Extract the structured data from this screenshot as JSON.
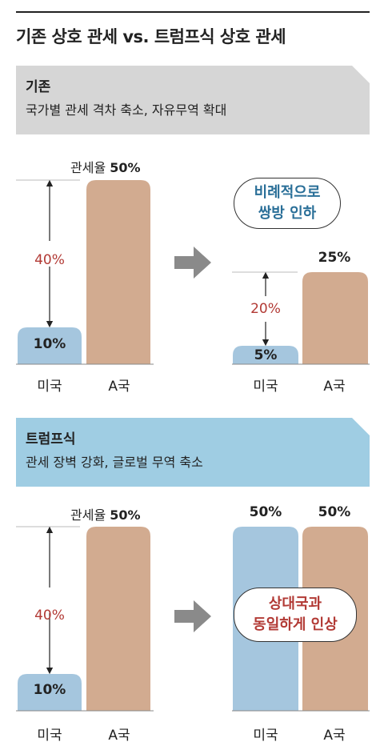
{
  "page": {
    "title": "기존 상호 관세 vs. 트럼프식 상호 관세"
  },
  "colors": {
    "us_bar": "#a5c6de",
    "a_bar": "#d2ab90",
    "gap_text": "#b23a35",
    "pill_text_blue": "#2a6f98",
    "pill_text_red": "#b23a35",
    "banner_existing": "#d6d6d6",
    "banner_trump": "#9fcde3",
    "arrow": "#8a8a8a"
  },
  "sections": {
    "existing": {
      "title": "기존",
      "subtitle": "국가별 관세 격차 축소, 자유무역 확대",
      "callout_line1": "비례적으로",
      "callout_line2": "쌍방 인하"
    },
    "trump": {
      "title": "트럼프식",
      "subtitle": "관세 장벽 강화, 글로벌 무역 축소",
      "callout_line1": "상대국과",
      "callout_line2": "동일하게 인상"
    }
  },
  "chart_data": [
    {
      "type": "bar",
      "section": "기존",
      "stage": "before",
      "categories": [
        "미국",
        "A국"
      ],
      "values": [
        10,
        50
      ],
      "value_labels": [
        "10%",
        "50%"
      ],
      "value_label_prefix": "관세율",
      "gap_label": "40%"
    },
    {
      "type": "bar",
      "section": "기존",
      "stage": "after",
      "categories": [
        "미국",
        "A국"
      ],
      "values": [
        5,
        25
      ],
      "value_labels": [
        "5%",
        "25%"
      ],
      "gap_label": "20%"
    },
    {
      "type": "bar",
      "section": "트럼프식",
      "stage": "before",
      "categories": [
        "미국",
        "A국"
      ],
      "values": [
        10,
        50
      ],
      "value_labels": [
        "10%",
        "50%"
      ],
      "value_label_prefix": "관세율",
      "gap_label": "40%"
    },
    {
      "type": "bar",
      "section": "트럼프식",
      "stage": "after",
      "categories": [
        "미국",
        "A국"
      ],
      "values": [
        50,
        50
      ],
      "value_labels": [
        "50%",
        "50%"
      ]
    }
  ]
}
